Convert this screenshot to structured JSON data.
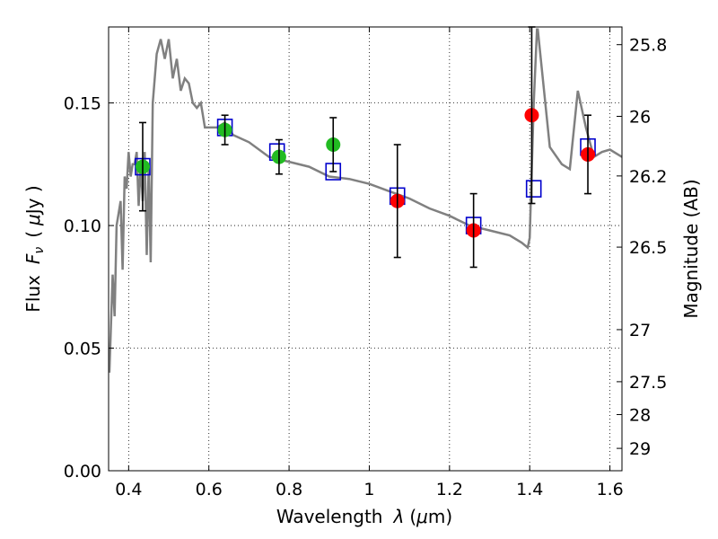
{
  "chart_data": {
    "type": "scatter",
    "xlabel_text": "Wavelength",
    "xlabel_symbol": "λ",
    "xlabel_unit_open": "(",
    "xlabel_unit_mu": "μ",
    "xlabel_unit_close": "m)",
    "ylabel_text": "Flux",
    "ylabel_symbol": "F",
    "ylabel_symbol_sub": "ν",
    "ylabel_unit_open": "(",
    "ylabel_unit_mu": "μ",
    "ylabel_unit_close": "Jy )",
    "y2label": "Magnitude (AB)",
    "xlim": [
      0.35,
      1.63
    ],
    "ylim": [
      0.0,
      0.181
    ],
    "xticks": [
      0.4,
      0.6,
      0.8,
      1.0,
      1.2,
      1.4,
      1.6
    ],
    "xtick_labels": [
      "0.4",
      "0.6",
      "0.8",
      "1",
      "1.2",
      "1.4",
      "1.6"
    ],
    "yticks": [
      0.0,
      0.05,
      0.1,
      0.15
    ],
    "ytick_labels": [
      "0.00",
      "0.05",
      "0.10",
      "0.15"
    ],
    "y2ticks": [
      {
        "mag": 25.8,
        "label": "25.8"
      },
      {
        "mag": 26.0,
        "label": "26"
      },
      {
        "mag": 26.2,
        "label": "26.2"
      },
      {
        "mag": 26.5,
        "label": "26.5"
      },
      {
        "mag": 27.0,
        "label": "27"
      },
      {
        "mag": 27.5,
        "label": "27.5"
      },
      {
        "mag": 28.0,
        "label": "28"
      },
      {
        "mag": 29.0,
        "label": "29"
      }
    ],
    "grid": true,
    "colors": {
      "spectrum": "#808080",
      "green": "#22bb22",
      "red": "#ff0000",
      "model_box": "#0000cc",
      "errorbar": "#000000"
    },
    "spectrum": {
      "name": "",
      "x": [
        0.352,
        0.36,
        0.365,
        0.37,
        0.38,
        0.385,
        0.39,
        0.395,
        0.4,
        0.405,
        0.41,
        0.415,
        0.42,
        0.425,
        0.43,
        0.435,
        0.44,
        0.445,
        0.45,
        0.455,
        0.46,
        0.465,
        0.47,
        0.48,
        0.49,
        0.5,
        0.51,
        0.52,
        0.53,
        0.54,
        0.55,
        0.56,
        0.57,
        0.58,
        0.59,
        0.6,
        0.62,
        0.64,
        0.66,
        0.7,
        0.75,
        0.8,
        0.85,
        0.9,
        0.95,
        1.0,
        1.05,
        1.1,
        1.15,
        1.2,
        1.25,
        1.3,
        1.35,
        1.38,
        1.395,
        1.4,
        1.41,
        1.418,
        1.42,
        1.45,
        1.48,
        1.5,
        1.52,
        1.54,
        1.56,
        1.58,
        1.6,
        1.63
      ],
      "y": [
        0.04,
        0.08,
        0.063,
        0.1,
        0.11,
        0.082,
        0.12,
        0.115,
        0.13,
        0.12,
        0.125,
        0.125,
        0.13,
        0.108,
        0.125,
        0.11,
        0.13,
        0.088,
        0.125,
        0.085,
        0.15,
        0.16,
        0.17,
        0.176,
        0.168,
        0.176,
        0.16,
        0.168,
        0.155,
        0.16,
        0.158,
        0.15,
        0.148,
        0.15,
        0.14,
        0.14,
        0.14,
        0.142,
        0.137,
        0.134,
        0.128,
        0.126,
        0.124,
        0.12,
        0.119,
        0.117,
        0.114,
        0.111,
        0.107,
        0.104,
        0.1,
        0.098,
        0.096,
        0.093,
        0.091,
        0.095,
        0.15,
        0.18,
        0.18,
        0.132,
        0.125,
        0.123,
        0.155,
        0.14,
        0.128,
        0.13,
        0.131,
        0.128
      ]
    },
    "models": [
      {
        "x": 0.435,
        "y": 0.124
      },
      {
        "x": 0.64,
        "y": 0.14
      },
      {
        "x": 0.77,
        "y": 0.13
      },
      {
        "x": 0.91,
        "y": 0.122
      },
      {
        "x": 1.07,
        "y": 0.112
      },
      {
        "x": 1.26,
        "y": 0.1
      },
      {
        "x": 1.41,
        "y": 0.115
      },
      {
        "x": 1.545,
        "y": 0.132
      }
    ],
    "points": [
      {
        "x": 0.435,
        "y": 0.124,
        "err": 0.018,
        "color": "green"
      },
      {
        "x": 0.64,
        "y": 0.139,
        "err": 0.006,
        "color": "green"
      },
      {
        "x": 0.775,
        "y": 0.128,
        "err": 0.007,
        "color": "green"
      },
      {
        "x": 0.91,
        "y": 0.133,
        "err": 0.011,
        "color": "green"
      },
      {
        "x": 1.07,
        "y": 0.11,
        "err": 0.023,
        "color": "red"
      },
      {
        "x": 1.26,
        "y": 0.098,
        "err": 0.015,
        "color": "red"
      },
      {
        "x": 1.405,
        "y": 0.145,
        "err": 0.036,
        "color": "red"
      },
      {
        "x": 1.545,
        "y": 0.129,
        "err": 0.016,
        "color": "red"
      }
    ]
  }
}
